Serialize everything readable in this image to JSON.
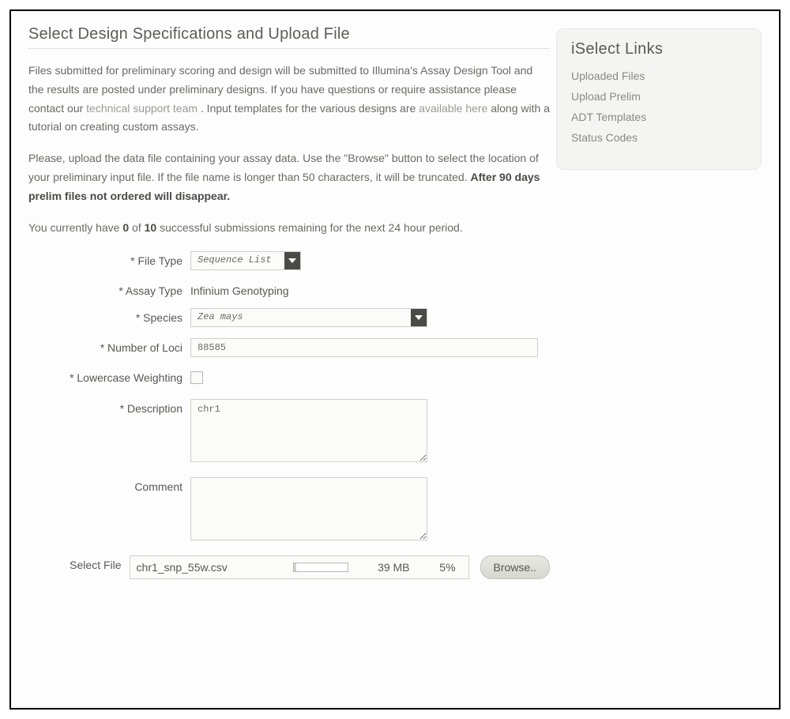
{
  "page": {
    "title": "Select Design Specifications and Upload File"
  },
  "intro": {
    "p1_a": "Files submitted for preliminary scoring and design will be submitted to Illumina's Assay Design Tool and the results are posted under preliminary designs. If you have questions or require assistance please contact our ",
    "p1_link1": "technical support team",
    "p1_b": ". Input templates for the various designs are ",
    "p1_link2": "available here",
    "p1_c": " along with a tutorial on creating custom assays.",
    "p2_a": "Please, upload the data file containing your assay data. Use the \"Browse\" button to select the location of your preliminary input file. If the file name is longer than 50 characters, it will be truncated. ",
    "p2_strong": "After 90 days prelim files not ordered will disappear.",
    "p3_a": "You currently have ",
    "p3_count": "0",
    "p3_b": " of ",
    "p3_total": "10",
    "p3_c": " successful submissions remaining for the next 24 hour period."
  },
  "form": {
    "file_type": {
      "label": "* File Type",
      "value": "Sequence List"
    },
    "assay_type": {
      "label": "* Assay Type",
      "value": "Infinium Genotyping"
    },
    "species": {
      "label": "* Species",
      "value": "Zea mays"
    },
    "loci": {
      "label": "* Number of Loci",
      "value": "88585"
    },
    "lowercase": {
      "label": "* Lowercase Weighting",
      "checked": false
    },
    "description": {
      "label": "* Description",
      "value": "chr1"
    },
    "comment": {
      "label": "Comment",
      "value": ""
    },
    "select_file": {
      "label": "Select File",
      "filename": "chr1_snp_55w.csv",
      "size": "39 MB",
      "percent_label": "5%",
      "percent_value": 5,
      "browse_label": "Browse.."
    }
  },
  "sidebar": {
    "title": "iSelect Links",
    "links": [
      "Uploaded Files",
      "Upload Prelim",
      "ADT Templates",
      "Status Codes"
    ]
  },
  "colors": {
    "text_main": "#6a6a64",
    "text_dark": "#4a4a46",
    "border": "#cfcfca",
    "sidebar_bg": "#f4f4f2",
    "link": "#9a9a92"
  }
}
